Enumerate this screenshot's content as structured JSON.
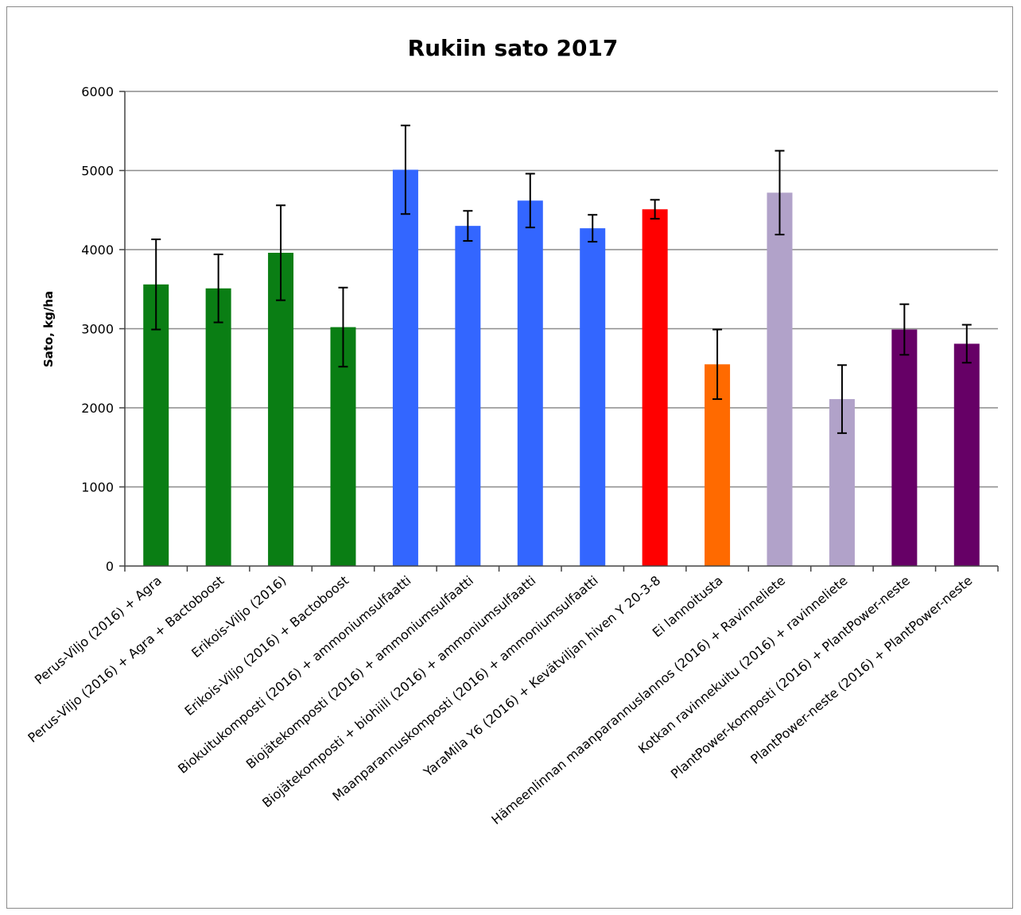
{
  "chart_data": {
    "type": "bar",
    "title": "Rukiin sato 2017",
    "xlabel": "",
    "ylabel": "Sato, kg/ha",
    "ylim": [
      0,
      6000
    ],
    "yticks": [
      "0",
      "1000",
      "2000",
      "3000",
      "4000",
      "5000",
      "6000"
    ],
    "grid": true,
    "legend": "none",
    "categories": [
      "Perus-Viljo (2016) + Agra",
      "Perus-Viljo (2016) + Agra + Bactoboost",
      "Erikois-Viljo (2016)",
      "Erikois-Viljo (2016) + Bactoboost",
      "Biokuitukomposti (2016) + ammoniumsulfaatti",
      "Biojätekomposti (2016) + ammoniumsulfaatti",
      "Biojätekomposti + biohiili (2016) + ammoniumsulfaatti",
      "Maanparannuskomposti (2016) + ammoniumsulfaatti",
      "YaraMila Y6 (2016) + Kevätviljan hiven Y 20-3-8",
      "Ei lannoitusta",
      "Hämeenlinnan maanparannuslannos (2016) + Ravinneliete",
      "Kotkan ravinnekuitu (2016) + ravinneliete",
      "PlantPower-komposti (2016) + PlantPower-neste",
      "PlantPower-neste (2016) + PlantPower-neste"
    ],
    "values": [
      3560,
      3510,
      3960,
      3020,
      5010,
      4300,
      4620,
      4270,
      4510,
      2550,
      4720,
      2110,
      2990,
      2810
    ],
    "errors": [
      570,
      430,
      600,
      500,
      560,
      190,
      340,
      170,
      120,
      440,
      530,
      430,
      320,
      240
    ],
    "colors": [
      "#0a7e14",
      "#0a7e14",
      "#0a7e14",
      "#0a7e14",
      "#3366ff",
      "#3366ff",
      "#3366ff",
      "#3366ff",
      "#ff0000",
      "#ff6a00",
      "#b1a2c9",
      "#b1a2c9",
      "#660066",
      "#660066"
    ]
  }
}
